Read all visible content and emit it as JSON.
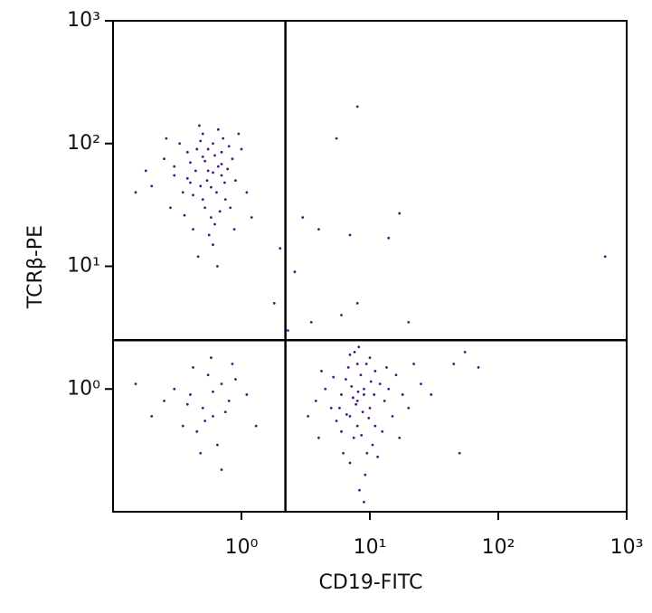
{
  "chart_data": {
    "type": "scatter",
    "x_label": "CD19-FITC",
    "y_label": "TCRβ-PE",
    "log_x": true,
    "log_y": true,
    "color": "#4a1580",
    "xlim": [
      0.1,
      1000
    ],
    "ylim": [
      0.1,
      1000
    ],
    "xticks": [
      {
        "value": 1,
        "label": "10⁰"
      },
      {
        "value": 10,
        "label": "10¹"
      },
      {
        "value": 100,
        "label": "10²"
      },
      {
        "value": 1000,
        "label": "10³"
      }
    ],
    "yticks": [
      {
        "value": 1,
        "label": "10⁰"
      },
      {
        "value": 10,
        "label": "10¹"
      },
      {
        "value": 100,
        "label": "10²"
      },
      {
        "value": 1000,
        "label": "10³"
      }
    ],
    "quadrant_x": 2.2,
    "quadrant_y": 2.5,
    "x": [
      0.55,
      0.48,
      0.62,
      0.7,
      0.4,
      0.52,
      0.6,
      0.35,
      0.75,
      0.45,
      0.58,
      0.66,
      0.5,
      0.3,
      0.85,
      0.42,
      0.72,
      0.54,
      0.38,
      0.64,
      0.9,
      0.28,
      0.47,
      0.8,
      0.56,
      0.25,
      0.68,
      0.44,
      0.95,
      0.33,
      0.6,
      0.5,
      0.78,
      0.4,
      0.52,
      0.7,
      0.62,
      0.36,
      1.1,
      0.2,
      0.46,
      0.66,
      0.55,
      0.82,
      0.3,
      0.58,
      0.74,
      0.48,
      0.18,
      1.0,
      0.65,
      0.42,
      0.88,
      0.26,
      0.6,
      0.5,
      0.7,
      0.38,
      1.2,
      0.15,
      8,
      7,
      9,
      10,
      6,
      8.5,
      11,
      7.5,
      12,
      5,
      9.5,
      8,
      6.5,
      13,
      7,
      10,
      4.5,
      15,
      8,
      9,
      7.8,
      8.8,
      6,
      11,
      5.5,
      14,
      10.5,
      7.2,
      9.2,
      3.8,
      18,
      8.3,
      6.8,
      12.5,
      4,
      16,
      7.6,
      9.8,
      5.2,
      20,
      8.1,
      7.4,
      10.2,
      6.2,
      11.5,
      3.3,
      25,
      8.6,
      9.4,
      5.8,
      13.5,
      7,
      10.8,
      6.6,
      17,
      4.2,
      22,
      9,
      8.2,
      30,
      0.5,
      0.4,
      0.6,
      0.7,
      0.35,
      0.55,
      0.8,
      0.45,
      0.3,
      0.65,
      0.9,
      0.25,
      0.52,
      0.75,
      0.42,
      1.1,
      0.2,
      0.6,
      0.48,
      0.85,
      0.38,
      0.15,
      1.3,
      0.7,
      0.58,
      8,
      5.5,
      7,
      17,
      680,
      3,
      4,
      14,
      6,
      8,
      20,
      45,
      55,
      70,
      50,
      2.6,
      1.8,
      2.3,
      2,
      3.5
    ],
    "values": [
      60,
      45,
      80,
      55,
      70,
      30,
      100,
      40,
      35,
      90,
      25,
      65,
      120,
      55,
      75,
      20,
      110,
      50,
      85,
      40,
      50,
      30,
      140,
      95,
      18,
      75,
      28,
      60,
      120,
      100,
      15,
      35,
      62,
      48,
      72,
      85,
      22,
      26,
      40,
      45,
      12,
      130,
      90,
      30,
      65,
      44,
      48,
      105,
      60,
      90,
      10,
      38,
      20,
      110,
      58,
      78,
      68,
      52,
      25,
      40,
      0.8,
      0.6,
      1.0,
      0.7,
      0.9,
      1.3,
      0.5,
      0.4,
      1.1,
      0.7,
      0.3,
      1.6,
      1.2,
      0.8,
      0.25,
      1.8,
      1.0,
      0.6,
      0.5,
      0.9,
      0.75,
      0.65,
      0.45,
      1.4,
      0.55,
      1.0,
      0.35,
      1.05,
      0.2,
      0.8,
      0.9,
      0.15,
      1.5,
      0.45,
      0.4,
      1.3,
      2.0,
      0.58,
      1.25,
      0.7,
      0.95,
      0.85,
      1.15,
      0.3,
      0.28,
      0.6,
      1.1,
      0.42,
      1.6,
      0.7,
      1.5,
      1.9,
      0.9,
      0.62,
      0.4,
      1.4,
      1.6,
      0.12,
      2.2,
      0.9,
      0.7,
      0.9,
      0.6,
      1.1,
      0.5,
      1.3,
      0.8,
      0.45,
      1.0,
      0.35,
      1.2,
      0.8,
      0.55,
      0.65,
      1.5,
      0.9,
      0.6,
      0.95,
      0.3,
      1.6,
      0.75,
      1.1,
      0.5,
      0.22,
      1.8,
      200,
      110,
      18,
      27,
      12,
      25,
      20,
      17,
      4,
      5,
      3.5,
      1.6,
      2,
      1.5,
      0.3,
      9,
      5,
      3,
      14,
      3.5
    ]
  }
}
